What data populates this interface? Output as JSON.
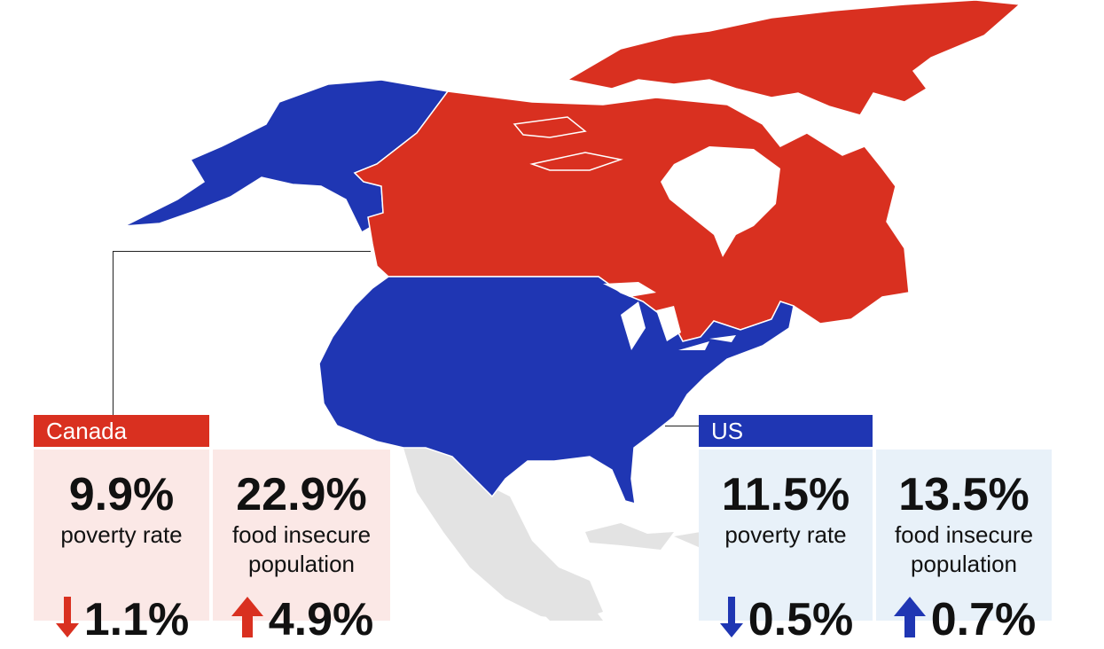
{
  "colors": {
    "canada": "#d93020",
    "us": "#1f36b3",
    "other_land": "#e3e3e3",
    "canada_card_bg": "#fbe8e6",
    "us_card_bg": "#e8f1f9"
  },
  "canada": {
    "label": "Canada",
    "poverty": {
      "value": "9.9%",
      "label": "poverty rate",
      "change": "1.1%",
      "direction": "down",
      "icon": "arrow-down-icon"
    },
    "food": {
      "value": "22.9%",
      "label_line1": "food insecure",
      "label_line2": "population",
      "change": "4.9%",
      "direction": "up",
      "icon": "arrow-up-icon"
    }
  },
  "us": {
    "label": "US",
    "poverty": {
      "value": "11.5%",
      "label": "poverty rate",
      "change": "0.5%",
      "direction": "down",
      "icon": "arrow-down-icon"
    },
    "food": {
      "value": "13.5%",
      "label_line1": "food insecure",
      "label_line2": "population",
      "change": "0.7%",
      "direction": "up",
      "icon": "arrow-up-icon"
    }
  }
}
